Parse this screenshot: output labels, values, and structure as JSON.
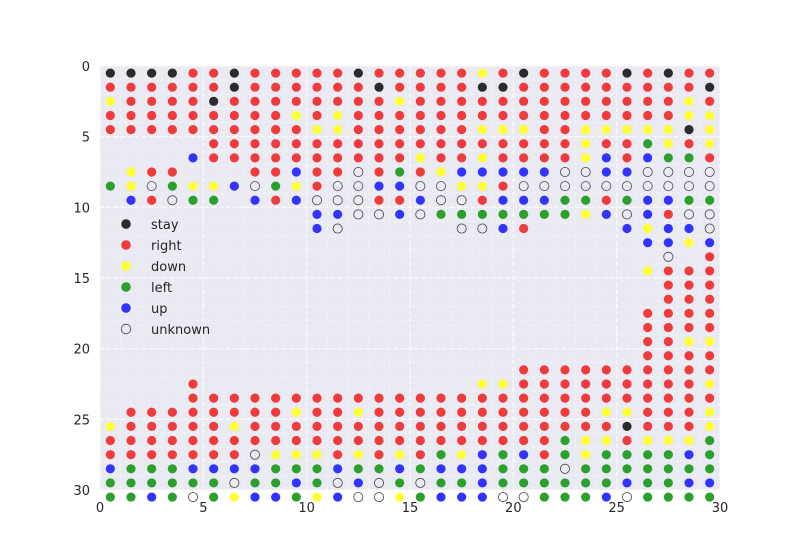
{
  "chart_data": {
    "type": "scatter",
    "title": "",
    "xlabel": "",
    "ylabel": "",
    "xlim": [
      0,
      30
    ],
    "ylim": [
      30,
      0
    ],
    "y_inverted": true,
    "grid": true,
    "x_ticks": [
      0,
      5,
      10,
      15,
      20,
      25,
      30
    ],
    "y_ticks": [
      0,
      5,
      10,
      15,
      20,
      25,
      30
    ],
    "legend": {
      "placement": "left-middle",
      "entries": [
        {
          "label": "stay",
          "color": "#2b2b2b",
          "marker": "filled"
        },
        {
          "label": "right",
          "color": "#ef3b3b",
          "marker": "filled"
        },
        {
          "label": "down",
          "color": "#ffff33",
          "marker": "filled"
        },
        {
          "label": "left",
          "color": "#2ca02c",
          "marker": "filled"
        },
        {
          "label": "up",
          "color": "#3333ff",
          "marker": "filled"
        },
        {
          "label": "unknown",
          "color": "#444444",
          "marker": "hollow"
        }
      ]
    },
    "codes": {
      "S": "stay",
      "R": "right",
      "D": "down",
      "L": "left",
      "U": "up",
      "N": "unknown"
    },
    "grid_x_offset": 0.5,
    "grid_y_offset": 0.5,
    "rows": [
      "SSSSRRSRRRRRSRRRRRDRSRRRRSRSRR",
      "RRRRRRSRRRRRRSRRRRSSRRRRRRRRRS",
      "DRRRRSRRRRRRRRDRRRRRRRRRRRRRDR",
      "RRRRRRRRRDRDRRRRRRRRRRRRRRRRDD",
      "RRRRRRRRRRDDRRRRRRDDDRRDDDDDSD",
      ".....RRRRRRRRRRRRRRRRRRDRRLDRD",
      "....URRRRRRRRRRDRRDRRRRDURULLR",
      ".DRR...RRURRNRLRDUUUUUNNUUNNNN",
      "LDNLDDUNLDRNNUUNNDDRNNNNNNNNNN",
      ".URNLL.URUNNNRRUNNRUUULLRLUULL",
      "..........UUNNUNLLLLLLLDUNURNNLD",
      "..........UN.....NNUR....UDUUNLUR",
      "..........................UUDURR",
      "...........................N.RLR",
      "..........................DRRRRS",
      "...........................RRRDS",
      "...........................RRRSR",
      "..........................RRRRR",
      "..........................RRRR",
      "..........................RRDD",
      "..........................RRRR",
      "....................RRRRRRRRRR",
      "....R.............DDRRRRRRRRRD",
      "....RRRRRRRRRRRRRRRRRRRRRRRRRR",
      ".RRRRRRRRDRRDRRRRRRRRRRRDDRRRD",
      "DRRRRRDRRRRRRRRRRRRRRRRRRSRRRD",
      "RRRRRRRRRRRRRRRRRRRRRRLDDRDDDL",
      "RRRRRRRNDDDRDRDRLDULURLDLLLLUL",
      "ULLLUUUULLLULLULUUULLLNLLLLLLL",
      "LLLLLLNLLULNUNLNLLULLLLLLULLUU",
      "LLULNLDUULDUNNDLUUUNNLLLUNLLLL"
    ]
  }
}
